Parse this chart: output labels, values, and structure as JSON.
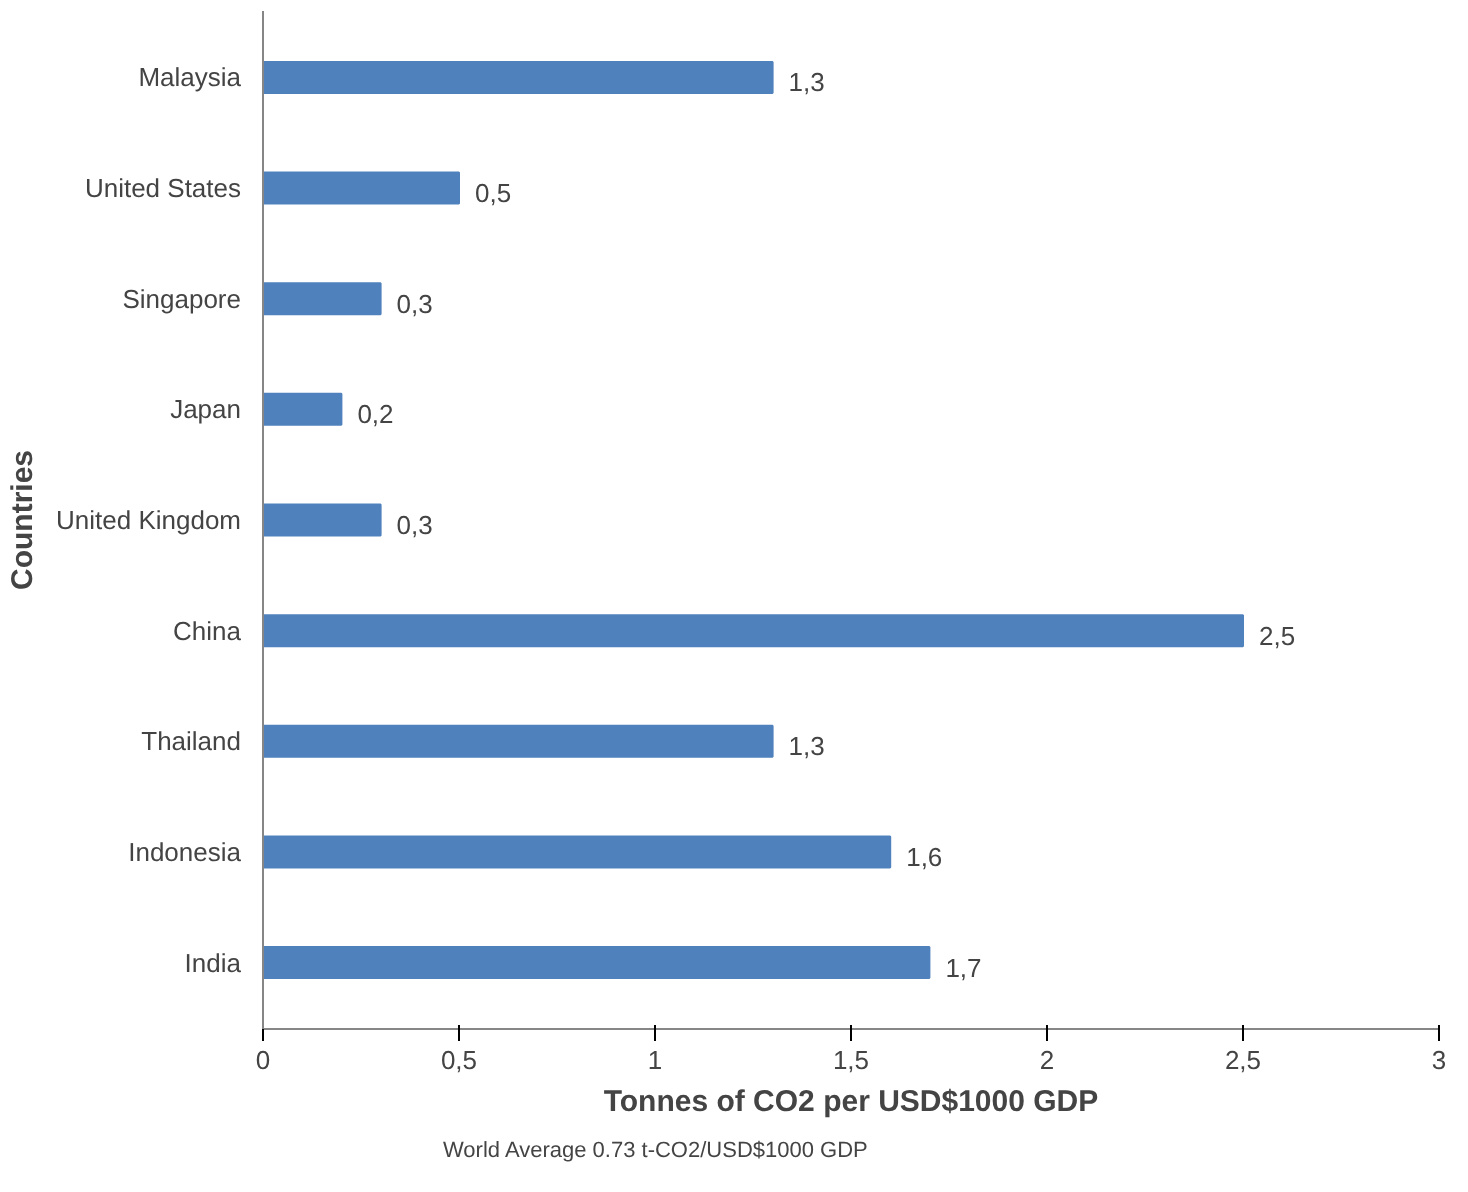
{
  "chart_data": {
    "type": "bar",
    "orientation": "horizontal",
    "xlabel": "Tonnes of CO2 per USD$1000 GDP",
    "ylabel": "Countries",
    "categories": [
      "Malaysia",
      "United States",
      "Singapore",
      "Japan",
      "United Kingdom",
      "China",
      "Thailand",
      "Indonesia",
      "India"
    ],
    "values": [
      1.3,
      0.5,
      0.3,
      0.2,
      0.3,
      2.5,
      1.3,
      1.6,
      1.7
    ],
    "value_labels": [
      "1,3",
      "0,5",
      "0,3",
      "0,2",
      "0,3",
      "2,5",
      "1,3",
      "1,6",
      "1,7"
    ],
    "color": "#4f81bd",
    "xlim": [
      0,
      3
    ],
    "xticks": [
      0,
      {
        "value": 0.5,
        "label": "0,5"
      },
      1,
      {
        "value": 1.5,
        "label": "1,5"
      },
      2,
      {
        "value": 2.5,
        "label": "2,5"
      },
      3
    ],
    "grid": false,
    "annotations": [
      "World Average 0.73 t-CO2/USD$1000 GDP"
    ]
  }
}
